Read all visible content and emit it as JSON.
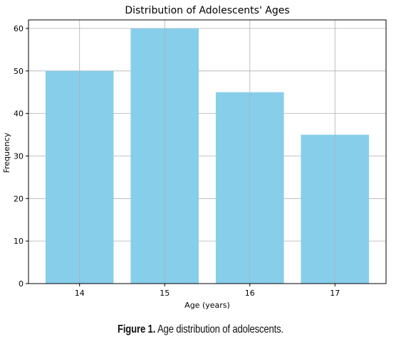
{
  "chart_data": {
    "type": "bar",
    "title": "Distribution of Adolescents' Ages",
    "xlabel": "Age (years)",
    "ylabel": "Frequency",
    "categories": [
      "14",
      "15",
      "16",
      "17"
    ],
    "values": [
      50,
      60,
      45,
      35
    ],
    "ylim": [
      0,
      62
    ],
    "yticks": [
      0,
      10,
      20,
      30,
      40,
      50,
      60
    ],
    "grid": true,
    "bar_color": "#87ceeb"
  },
  "caption": {
    "label": "Figure 1.",
    "text": " Age distribution of adolescents."
  }
}
